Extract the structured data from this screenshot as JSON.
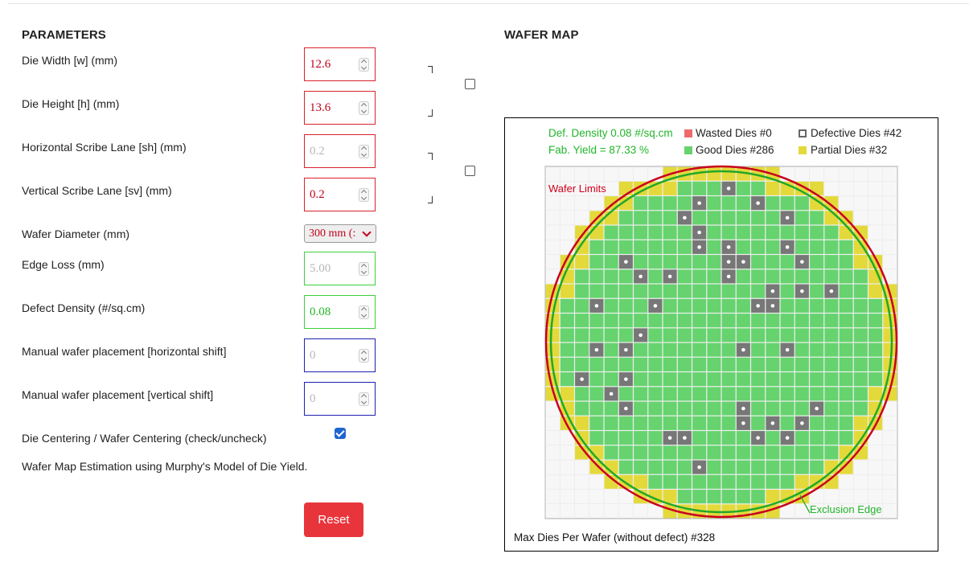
{
  "parameters": {
    "heading": "PARAMETERS",
    "die_width": {
      "label": "Die Width [w] (mm)",
      "value": "12.6"
    },
    "die_height": {
      "label": "Die Height [h] (mm)",
      "value": "13.6"
    },
    "h_scribe": {
      "label": "Horizontal Scribe Lane [sh] (mm)",
      "value": "0.2"
    },
    "v_scribe": {
      "label": "Vertical Scribe Lane [sv] (mm)",
      "value": "0.2"
    },
    "wafer_diameter": {
      "label": "Wafer Diameter (mm)",
      "value": "300 mm (:"
    },
    "edge_loss": {
      "label": "Edge Loss (mm)",
      "value": "5.00"
    },
    "defect_density": {
      "label": "Defect Density (#/sq.cm)",
      "value": "0.08"
    },
    "h_shift": {
      "label": "Manual wafer placement [horizontal shift]",
      "value": "0"
    },
    "v_shift": {
      "label": "Manual wafer placement [vertical shift]",
      "value": "0"
    },
    "centering": {
      "label": "Die Centering / Wafer Centering (check/uncheck)",
      "checked": true
    },
    "model_note": "Wafer Map Estimation using Murphy's Model of Die Yield.",
    "reset_label": "Reset"
  },
  "wafer_map": {
    "heading": "WAFER MAP",
    "def_density": "Def. Density 0.08 #/sq.cm",
    "fab_yield": "Fab. Yield = 87.33 %",
    "wasted": "Wasted Dies  #0",
    "good": "Good Dies #286",
    "defective": "Defective Dies  #42",
    "partial": "Partial Dies #32",
    "wafer_limits": "Wafer Limits",
    "exclusion_edge": "Exclusion Edge",
    "footer": "Max Dies Per Wafer (without defect) #328",
    "colors": {
      "good": "#66d36e",
      "partial": "#e3d93a",
      "defective": "#777777",
      "wasted": "#ef6a6a",
      "wafer_limit": "#c8001e",
      "exclusion": "#21a829",
      "label_green": "#22b52a",
      "label_red": "#d0001c"
    },
    "defects": [
      [
        12,
        1
      ],
      [
        10,
        2
      ],
      [
        14,
        2
      ],
      [
        9,
        3
      ],
      [
        16,
        3
      ],
      [
        10,
        4
      ],
      [
        10,
        5
      ],
      [
        12,
        5
      ],
      [
        16,
        5
      ],
      [
        5,
        6
      ],
      [
        12,
        6
      ],
      [
        13,
        6
      ],
      [
        17,
        6
      ],
      [
        6,
        7
      ],
      [
        8,
        7
      ],
      [
        12,
        7
      ],
      [
        15,
        8
      ],
      [
        17,
        8
      ],
      [
        19,
        8
      ],
      [
        3,
        9
      ],
      [
        7,
        9
      ],
      [
        14,
        9
      ],
      [
        15,
        9
      ],
      [
        6,
        11
      ],
      [
        3,
        12
      ],
      [
        5,
        12
      ],
      [
        13,
        12
      ],
      [
        16,
        12
      ],
      [
        2,
        14
      ],
      [
        5,
        14
      ],
      [
        4,
        15
      ],
      [
        5,
        16
      ],
      [
        13,
        16
      ],
      [
        18,
        16
      ],
      [
        13,
        17
      ],
      [
        15,
        17
      ],
      [
        17,
        17
      ],
      [
        8,
        18
      ],
      [
        9,
        18
      ],
      [
        14,
        18
      ],
      [
        16,
        18
      ],
      [
        10,
        20
      ]
    ]
  }
}
